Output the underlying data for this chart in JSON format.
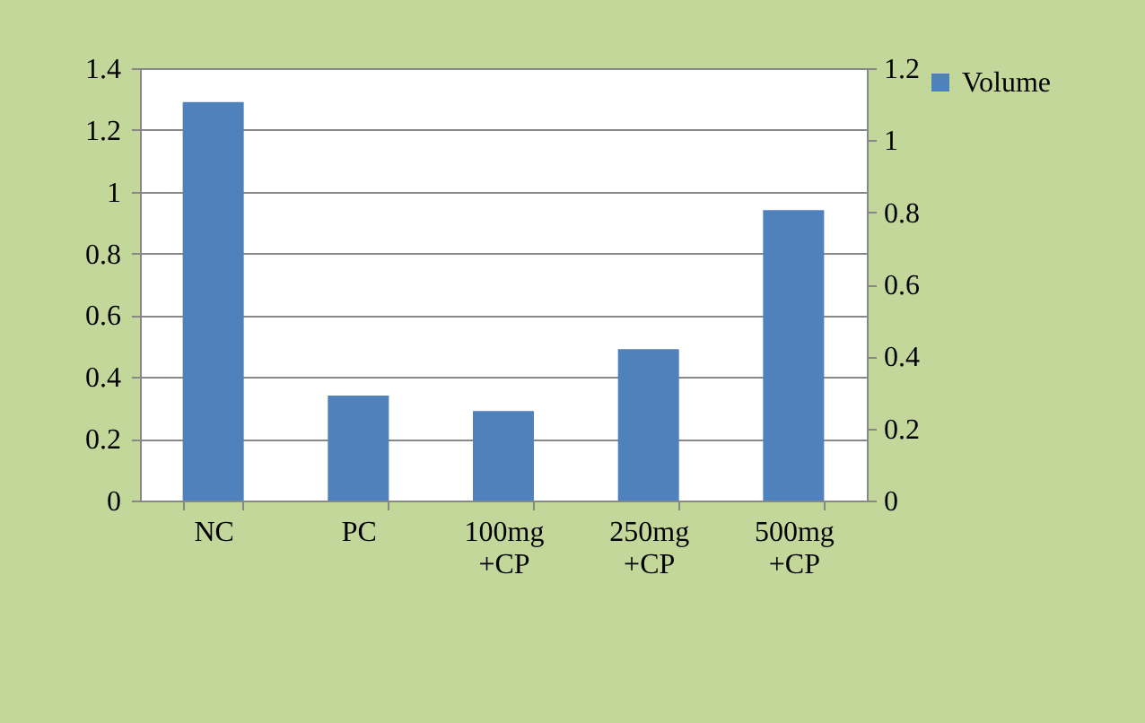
{
  "chart_data": {
    "type": "bar",
    "categories": [
      "NC",
      "PC",
      "100mg +CP",
      "250mg +CP",
      "500mg +CP"
    ],
    "series": [
      {
        "name": "Volume",
        "color": "#4f81bd",
        "values": [
          1.29,
          0.34,
          0.29,
          0.49,
          0.94
        ]
      }
    ],
    "ylim": [
      0,
      1.4
    ],
    "yticks": [
      0,
      0.2,
      0.4,
      0.6,
      0.8,
      1,
      1.2,
      1.4
    ],
    "y2lim": [
      0,
      1.2
    ],
    "y2ticks": [
      0,
      0.2,
      0.4,
      0.6,
      0.8,
      1,
      1.2
    ],
    "grid": "y",
    "legend": "right"
  }
}
